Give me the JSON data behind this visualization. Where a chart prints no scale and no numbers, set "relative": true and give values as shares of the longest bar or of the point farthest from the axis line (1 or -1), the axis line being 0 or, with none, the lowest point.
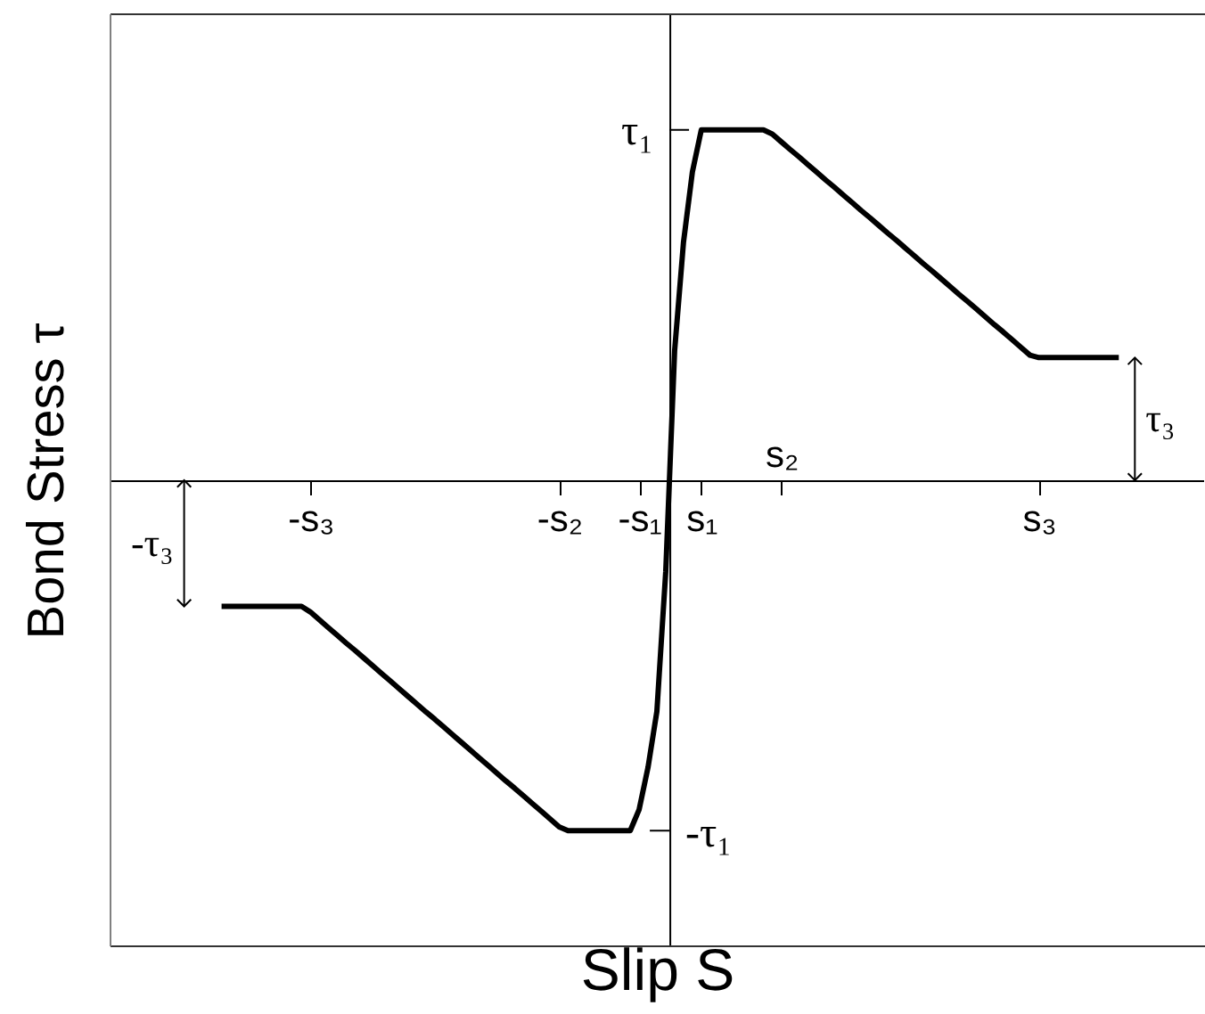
{
  "chart_data": {
    "type": "line",
    "relative": true,
    "xlabel": "Slip S",
    "ylabel": "Bond Stress τ",
    "categories": [
      null,
      null,
      null,
      null,
      null,
      null,
      null,
      null,
      null,
      null,
      null,
      null,
      null,
      null,
      null,
      null,
      null,
      null,
      null,
      null,
      null,
      null,
      "-s₃",
      null,
      null,
      null,
      null,
      null,
      null,
      null,
      null,
      null,
      null,
      null,
      null,
      null,
      null,
      null,
      null,
      null,
      null,
      null,
      null,
      null,
      null,
      null,
      null,
      null,
      null,
      null,
      "-s₂",
      null,
      null,
      null,
      null,
      null,
      null,
      null,
      null,
      "-s₁",
      null,
      null,
      null,
      null,
      null,
      null,
      "s₁",
      null,
      null,
      null,
      null,
      null,
      null,
      null,
      null,
      "s₂",
      null,
      null,
      null,
      null,
      null,
      null,
      null,
      null,
      null,
      null,
      null,
      null,
      null,
      null,
      null,
      null,
      null,
      null,
      null,
      null,
      null,
      null,
      null,
      null,
      null,
      null,
      null,
      null,
      "s₃",
      null,
      null,
      null,
      null,
      null,
      null,
      null,
      null,
      null,
      null,
      null,
      null,
      null,
      null,
      null,
      null,
      null,
      null
    ],
    "series": [
      {
        "color": "#000000",
        "values": [
          null,
          null,
          null,
          null,
          null,
          null,
          null,
          null,
          null,
          null,
          null,
          null,
          -0.36,
          -0.36,
          -0.36,
          -0.36,
          -0.36,
          -0.36,
          -0.36,
          -0.36,
          -0.36,
          -0.36,
          -0.376,
          -0.398,
          -0.42,
          -0.442,
          -0.464,
          -0.485,
          -0.507,
          -0.529,
          -0.551,
          -0.573,
          -0.595,
          -0.617,
          -0.639,
          -0.661,
          -0.682,
          -0.704,
          -0.726,
          -0.748,
          -0.77,
          -0.792,
          -0.814,
          -0.836,
          -0.858,
          -0.879,
          -0.901,
          -0.923,
          -0.945,
          -0.967,
          -0.989,
          -1,
          -1,
          -1,
          -1,
          -1,
          -1,
          -1,
          -1,
          -0.94,
          -0.82,
          -0.66,
          -0.26,
          0.37,
          0.68,
          0.88,
          1,
          1,
          1,
          1,
          1,
          1,
          1,
          1,
          0.988,
          0.966,
          0.944,
          0.923,
          0.901,
          0.879,
          0.857,
          0.836,
          0.814,
          0.792,
          0.77,
          0.749,
          0.727,
          0.705,
          0.684,
          0.662,
          0.64,
          0.618,
          0.597,
          0.575,
          0.553,
          0.531,
          0.51,
          0.488,
          0.466,
          0.444,
          0.423,
          0.401,
          0.379,
          0.357,
          0.35,
          0.35,
          0.35,
          0.35,
          0.35,
          0.35,
          0.35,
          0.35,
          0.35,
          0.35,
          null,
          null,
          null,
          null,
          null,
          null,
          null,
          null,
          null
        ]
      }
    ],
    "annotations": [
      "τ₁",
      "-τ₁",
      "τ₃",
      "-τ₃"
    ]
  }
}
